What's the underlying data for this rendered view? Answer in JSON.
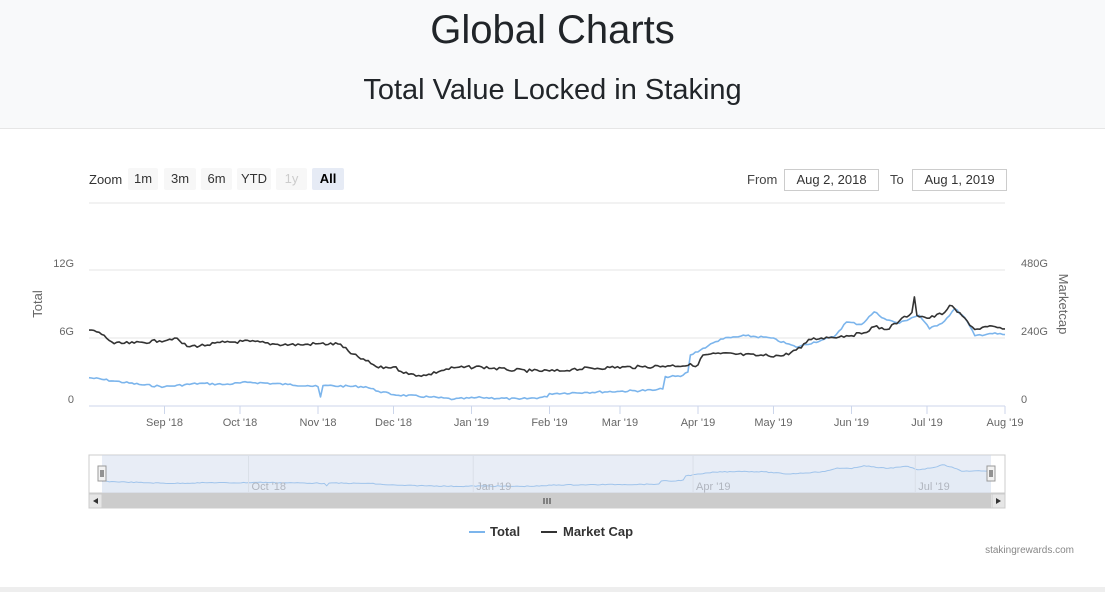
{
  "page": {
    "title": "Global Charts",
    "subtitle": "Total Value Locked in Staking"
  },
  "range_selector": {
    "zoom_label": "Zoom",
    "buttons": [
      {
        "label": "1m",
        "state": "normal"
      },
      {
        "label": "3m",
        "state": "normal"
      },
      {
        "label": "6m",
        "state": "normal"
      },
      {
        "label": "YTD",
        "state": "normal"
      },
      {
        "label": "1y",
        "state": "disabled"
      },
      {
        "label": "All",
        "state": "active"
      }
    ],
    "from_label": "From",
    "from_value": "Aug 2, 2018",
    "to_label": "To",
    "to_value": "Aug 1, 2019"
  },
  "source_credit": "stakingrewards.com",
  "colors": {
    "total": "#7cb5ec",
    "market_cap": "#333333",
    "navigator_mask": "#ccd6eb"
  },
  "chart_data": {
    "type": "line",
    "xlim": [
      "2018-08-02",
      "2019-08-01"
    ],
    "x_tick_labels": [
      "Sep '18",
      "Oct '18",
      "Nov '18",
      "Dec '18",
      "Jan '19",
      "Feb '19",
      "Mar '19",
      "Apr '19",
      "May '19",
      "Jun '19",
      "Jul '19",
      "Aug '19"
    ],
    "x_tick_dates": [
      "2018-09-01",
      "2018-10-01",
      "2018-11-01",
      "2018-12-01",
      "2019-01-01",
      "2019-02-01",
      "2019-03-01",
      "2019-04-01",
      "2019-05-01",
      "2019-06-01",
      "2019-07-01",
      "2019-08-01"
    ],
    "y_left": {
      "label": "Total",
      "ylim": [
        0,
        12000000000
      ],
      "ticks": [
        0,
        6000000000,
        12000000000
      ],
      "tick_labels": [
        "0",
        "6G",
        "12G"
      ]
    },
    "y_right": {
      "label": "Marketcap",
      "ylim": [
        0,
        480000000000
      ],
      "ticks": [
        0,
        240000000000,
        480000000000
      ],
      "tick_labels": [
        "0",
        "240G",
        "480G"
      ]
    },
    "grid": true,
    "legend": {
      "position": "bottom-center",
      "entries": [
        "Total",
        "Market Cap"
      ]
    },
    "navigator": {
      "tick_labels": [
        "Oct '18",
        "Jan '19",
        "Apr '19",
        "Jul '19"
      ],
      "tick_dates": [
        "2018-10-01",
        "2019-01-01",
        "2019-04-01",
        "2019-07-01"
      ]
    },
    "series": [
      {
        "name": "Total",
        "axis": "left",
        "color": "#7cb5ec",
        "points": [
          [
            "2018-08-02",
            2500000000.0
          ],
          [
            "2018-08-12",
            2200000000.0
          ],
          [
            "2018-08-22",
            1900000000.0
          ],
          [
            "2018-09-01",
            1700000000.0
          ],
          [
            "2018-09-15",
            2000000000.0
          ],
          [
            "2018-09-25",
            1900000000.0
          ],
          [
            "2018-10-05",
            2100000000.0
          ],
          [
            "2018-10-20",
            1900000000.0
          ],
          [
            "2018-10-28",
            1800000000.0
          ],
          [
            "2018-11-01",
            1700000000.0
          ],
          [
            "2018-11-02",
            800000000.0
          ],
          [
            "2018-11-03",
            1800000000.0
          ],
          [
            "2018-11-20",
            1700000000.0
          ],
          [
            "2018-11-25",
            1300000000.0
          ],
          [
            "2018-12-01",
            1000000000.0
          ],
          [
            "2018-12-15",
            800000000.0
          ],
          [
            "2018-12-25",
            600000000.0
          ],
          [
            "2019-01-05",
            750000000.0
          ],
          [
            "2019-01-20",
            600000000.0
          ],
          [
            "2019-01-31",
            800000000.0
          ],
          [
            "2019-02-01",
            1100000000.0
          ],
          [
            "2019-02-15",
            1200000000.0
          ],
          [
            "2019-03-01",
            1300000000.0
          ],
          [
            "2019-03-15",
            1400000000.0
          ],
          [
            "2019-03-18",
            1500000000.0
          ],
          [
            "2019-03-19",
            2600000000.0
          ],
          [
            "2019-03-25",
            2600000000.0
          ],
          [
            "2019-03-28",
            3000000000.0
          ],
          [
            "2019-03-29",
            4500000000.0
          ],
          [
            "2019-04-05",
            5300000000.0
          ],
          [
            "2019-04-10",
            5900000000.0
          ],
          [
            "2019-04-20",
            6200000000.0
          ],
          [
            "2019-04-30",
            6000000000.0
          ],
          [
            "2019-05-10",
            5200000000.0
          ],
          [
            "2019-05-20",
            5800000000.0
          ],
          [
            "2019-05-25",
            6100000000.0
          ],
          [
            "2019-05-30",
            7400000000.0
          ],
          [
            "2019-06-05",
            7200000000.0
          ],
          [
            "2019-06-10",
            8300000000.0
          ],
          [
            "2019-06-15",
            7600000000.0
          ],
          [
            "2019-06-20",
            7300000000.0
          ],
          [
            "2019-06-25",
            7800000000.0
          ],
          [
            "2019-06-28",
            8000000000.0
          ],
          [
            "2019-07-02",
            6800000000.0
          ],
          [
            "2019-07-08",
            7500000000.0
          ],
          [
            "2019-07-12",
            8600000000.0
          ],
          [
            "2019-07-16",
            7800000000.0
          ],
          [
            "2019-07-20",
            6200000000.0
          ],
          [
            "2019-07-26",
            6400000000.0
          ],
          [
            "2019-08-01",
            6300000000.0
          ]
        ]
      },
      {
        "name": "Market Cap",
        "axis": "right",
        "color": "#333333",
        "points": [
          [
            "2018-08-02",
            268000000000.0
          ],
          [
            "2018-08-06",
            260000000000.0
          ],
          [
            "2018-08-12",
            220000000000.0
          ],
          [
            "2018-08-20",
            222000000000.0
          ],
          [
            "2018-08-30",
            230000000000.0
          ],
          [
            "2018-09-05",
            240000000000.0
          ],
          [
            "2018-09-10",
            210000000000.0
          ],
          [
            "2018-09-18",
            215000000000.0
          ],
          [
            "2018-09-25",
            225000000000.0
          ],
          [
            "2018-10-05",
            228000000000.0
          ],
          [
            "2018-10-15",
            218000000000.0
          ],
          [
            "2018-10-25",
            216000000000.0
          ],
          [
            "2018-11-01",
            220000000000.0
          ],
          [
            "2018-11-10",
            218000000000.0
          ],
          [
            "2018-11-14",
            185000000000.0
          ],
          [
            "2018-11-20",
            160000000000.0
          ],
          [
            "2018-11-25",
            135000000000.0
          ],
          [
            "2018-12-01",
            138000000000.0
          ],
          [
            "2018-12-07",
            112000000000.0
          ],
          [
            "2018-12-14",
            108000000000.0
          ],
          [
            "2018-12-20",
            125000000000.0
          ],
          [
            "2018-12-25",
            135000000000.0
          ],
          [
            "2019-01-05",
            138000000000.0
          ],
          [
            "2019-01-15",
            128000000000.0
          ],
          [
            "2019-01-25",
            124000000000.0
          ],
          [
            "2019-02-05",
            123000000000.0
          ],
          [
            "2019-02-10",
            130000000000.0
          ],
          [
            "2019-02-25",
            136000000000.0
          ],
          [
            "2019-03-10",
            138000000000.0
          ],
          [
            "2019-03-20",
            142000000000.0
          ],
          [
            "2019-04-01",
            145000000000.0
          ],
          [
            "2019-04-03",
            180000000000.0
          ],
          [
            "2019-04-10",
            185000000000.0
          ],
          [
            "2019-04-25",
            178000000000.0
          ],
          [
            "2019-05-05",
            178000000000.0
          ],
          [
            "2019-05-12",
            205000000000.0
          ],
          [
            "2019-05-15",
            235000000000.0
          ],
          [
            "2019-05-20",
            240000000000.0
          ],
          [
            "2019-05-30",
            248000000000.0
          ],
          [
            "2019-06-05",
            255000000000.0
          ],
          [
            "2019-06-10",
            280000000000.0
          ],
          [
            "2019-06-15",
            270000000000.0
          ],
          [
            "2019-06-20",
            300000000000.0
          ],
          [
            "2019-06-25",
            330000000000.0
          ],
          [
            "2019-06-26",
            385000000000.0
          ],
          [
            "2019-06-27",
            320000000000.0
          ],
          [
            "2019-07-02",
            310000000000.0
          ],
          [
            "2019-07-08",
            330000000000.0
          ],
          [
            "2019-07-10",
            355000000000.0
          ],
          [
            "2019-07-15",
            318000000000.0
          ],
          [
            "2019-07-20",
            270000000000.0
          ],
          [
            "2019-07-25",
            280000000000.0
          ],
          [
            "2019-08-01",
            272000000000.0
          ]
        ]
      }
    ]
  }
}
